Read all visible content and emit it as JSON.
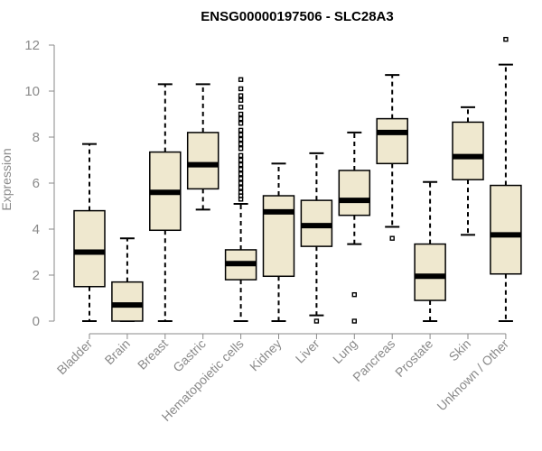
{
  "chart_data": {
    "type": "boxplot",
    "title": "ENSG00000197506 - SLC28A3",
    "xlabel": "",
    "ylabel": "Expression",
    "ylim": [
      0,
      12.4
    ],
    "yticks": [
      0,
      2,
      4,
      6,
      8,
      10,
      12
    ],
    "categories": [
      "Bladder",
      "Brain",
      "Breast",
      "Gastric",
      "Hematopoietic cells",
      "Kidney",
      "Liver",
      "Lung",
      "Pancreas",
      "Prostate",
      "Skin",
      "Unknown / Other"
    ],
    "series": [
      {
        "name": "Bladder",
        "min": 0,
        "q1": 1.5,
        "median": 3.0,
        "q3": 4.8,
        "max": 7.7,
        "outliers": []
      },
      {
        "name": "Brain",
        "min": 0,
        "q1": 0,
        "median": 0.7,
        "q3": 1.7,
        "max": 3.6,
        "outliers": []
      },
      {
        "name": "Breast",
        "min": 0,
        "q1": 3.95,
        "median": 5.6,
        "q3": 7.35,
        "max": 10.3,
        "outliers": []
      },
      {
        "name": "Gastric",
        "min": 4.85,
        "q1": 5.75,
        "median": 6.8,
        "q3": 8.2,
        "max": 10.3,
        "outliers": []
      },
      {
        "name": "Hematopoietic cells",
        "min": 0,
        "q1": 1.8,
        "median": 2.5,
        "q3": 3.1,
        "max": 5.1,
        "outliers": [
          5.3,
          5.45,
          5.6,
          5.8,
          6.0,
          6.2,
          6.4,
          6.6,
          6.8,
          7.0,
          7.2,
          7.5,
          7.7,
          7.9,
          8.1,
          8.3,
          8.6,
          8.8,
          9.0,
          9.3,
          9.6,
          9.8,
          10.1,
          10.5
        ]
      },
      {
        "name": "Kidney",
        "min": 0,
        "q1": 1.95,
        "median": 4.75,
        "q3": 5.45,
        "max": 6.85,
        "outliers": []
      },
      {
        "name": "Liver",
        "min": 0.25,
        "q1": 3.25,
        "median": 4.15,
        "q3": 5.25,
        "max": 7.3,
        "outliers": [
          0
        ]
      },
      {
        "name": "Lung",
        "min": 3.35,
        "q1": 4.6,
        "median": 5.25,
        "q3": 6.55,
        "max": 8.2,
        "outliers": [
          1.15,
          0
        ]
      },
      {
        "name": "Pancreas",
        "min": 4.1,
        "q1": 6.85,
        "median": 8.2,
        "q3": 8.8,
        "max": 10.7,
        "outliers": [
          3.6
        ]
      },
      {
        "name": "Prostate",
        "min": 0,
        "q1": 0.9,
        "median": 1.95,
        "q3": 3.35,
        "max": 6.05,
        "outliers": []
      },
      {
        "name": "Skin",
        "min": 3.75,
        "q1": 6.15,
        "median": 7.15,
        "q3": 8.65,
        "max": 9.3,
        "outliers": []
      },
      {
        "name": "Unknown / Other",
        "min": 0,
        "q1": 2.05,
        "median": 3.75,
        "q3": 5.9,
        "max": 11.15,
        "outliers": [
          12.25
        ]
      }
    ],
    "grid": false,
    "legend": "none"
  }
}
